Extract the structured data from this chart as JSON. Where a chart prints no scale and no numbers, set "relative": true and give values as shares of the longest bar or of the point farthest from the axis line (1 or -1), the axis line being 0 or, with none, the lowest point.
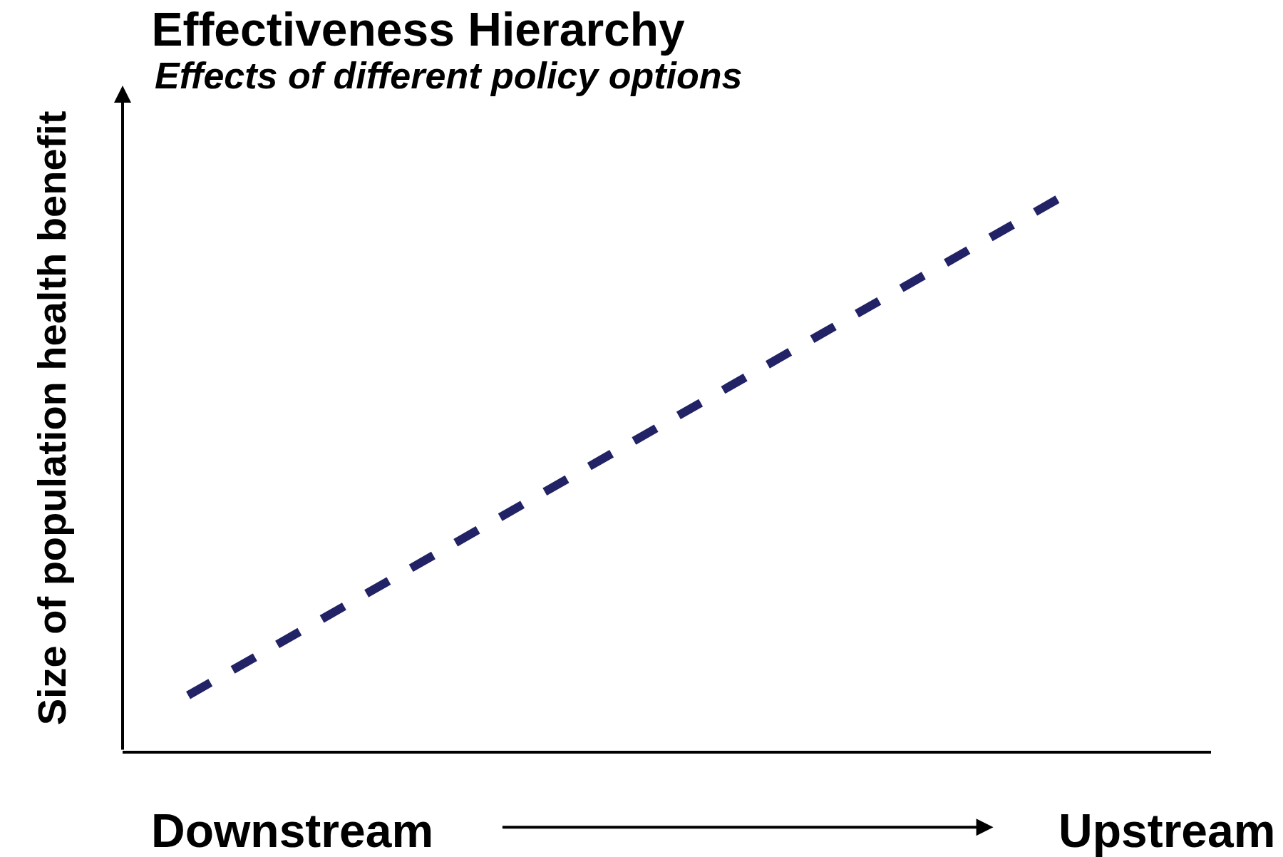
{
  "chart_data": {
    "type": "line",
    "title": "Effectiveness Hierarchy",
    "subtitle": "Effects of different policy options",
    "ylabel": "Size of population health benefit",
    "categories": [
      null,
      null
    ],
    "relative": true,
    "series": [
      {
        "color": "#222266",
        "values": [
          0.1,
          1
        ]
      }
    ],
    "line_style": "dashed",
    "marker": "none",
    "grid": false,
    "legend": false,
    "annotations": [
      "Downstream",
      "Upstream"
    ]
  }
}
